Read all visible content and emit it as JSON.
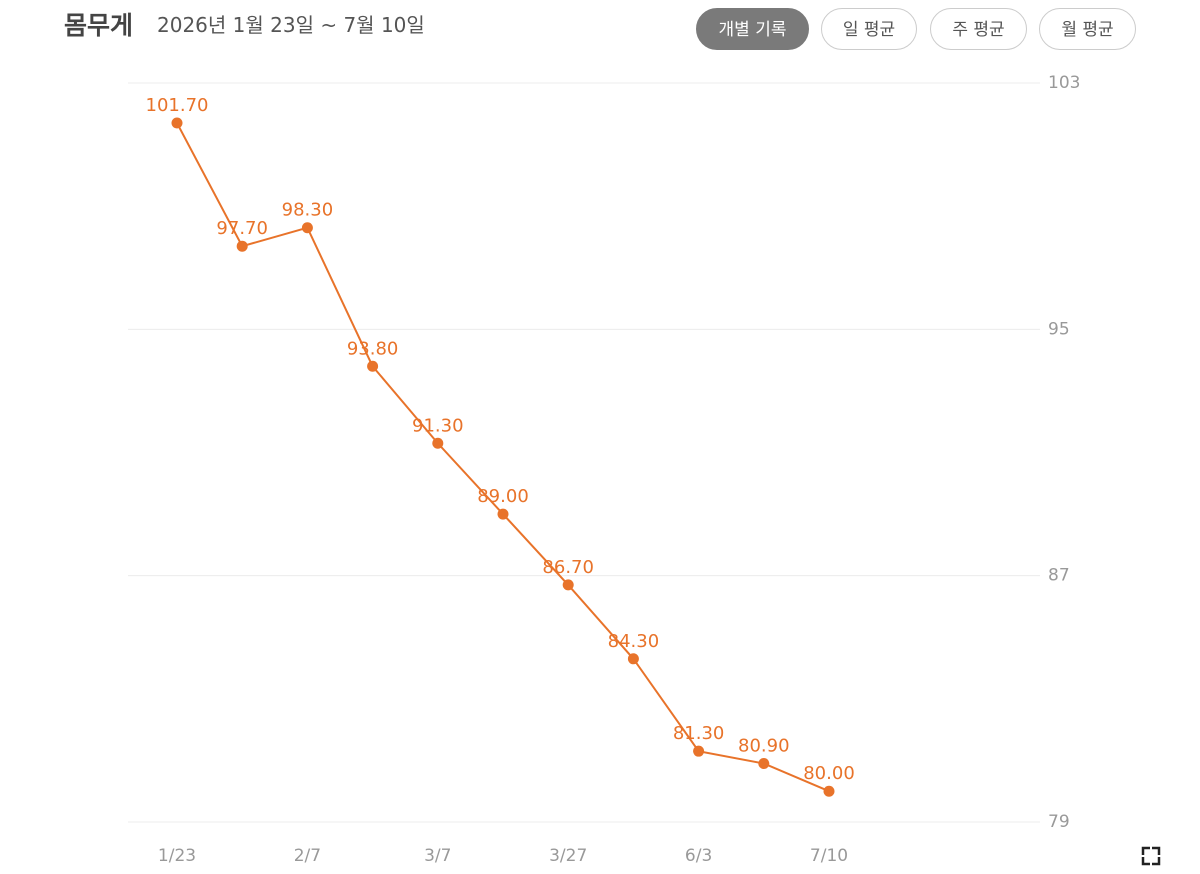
{
  "header": {
    "title": "몸무게",
    "subtitle": "2026년 1월 23일 ~ 7월 10일",
    "buttons": [
      "개별 기록",
      "일 평균",
      "주 평균",
      "월 평균"
    ]
  },
  "chart_data": {
    "type": "line",
    "categories": [
      "1/23",
      null,
      "2/7",
      null,
      "3/7",
      null,
      "3/27",
      null,
      "6/3",
      null,
      "7/10"
    ],
    "values": [
      101.7,
      97.7,
      98.3,
      93.8,
      91.3,
      89.0,
      86.7,
      84.3,
      81.3,
      80.9,
      80.0
    ],
    "value_labels": [
      "101.70",
      "97.70",
      "98.30",
      "93.80",
      "91.30",
      "89.00",
      "86.70",
      "84.30",
      "81.30",
      "80.90",
      "80.00"
    ],
    "color": "#e8732a",
    "ylim": [
      79,
      103
    ],
    "yticks": [
      79,
      87,
      95,
      103
    ],
    "grid": true
  }
}
